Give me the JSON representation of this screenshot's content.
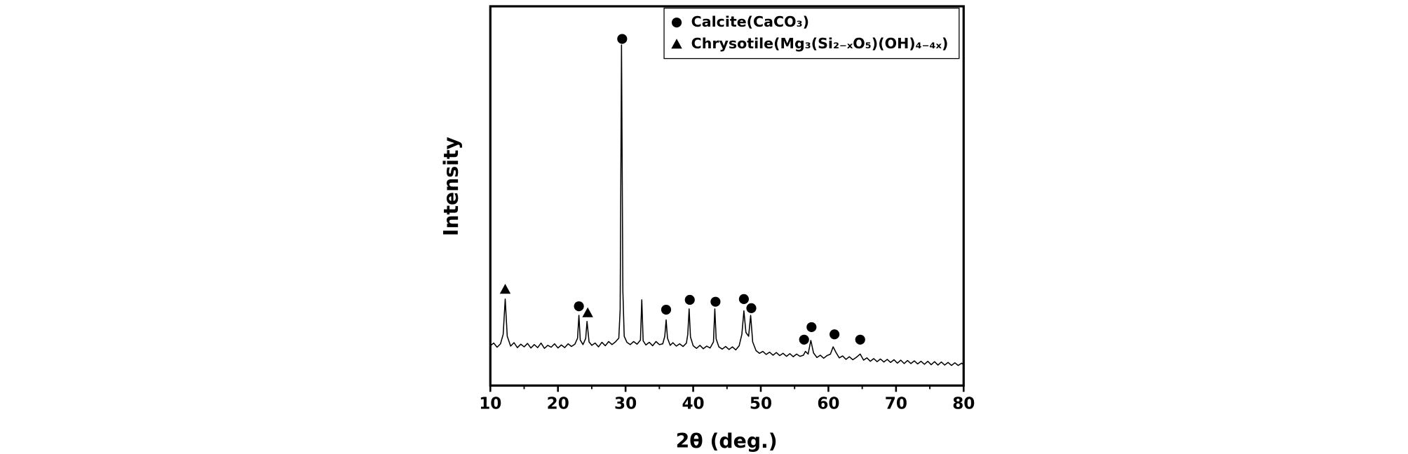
{
  "chart_data": {
    "type": "line",
    "xlabel": "2θ (deg.)",
    "ylabel": "Intensity",
    "xlim": [
      10,
      80
    ],
    "xticks": [
      10,
      20,
      30,
      40,
      50,
      60,
      70,
      80
    ],
    "ylim": [
      0,
      100
    ],
    "color": "#000000",
    "x": [
      10,
      10.5,
      11,
      11.5,
      11.9,
      12.2,
      12.5,
      13,
      13.5,
      14,
      14.5,
      15,
      15.5,
      16,
      16.5,
      17,
      17.5,
      18,
      18.5,
      19,
      19.5,
      20,
      20.5,
      21,
      21.5,
      22,
      22.5,
      22.9,
      23.1,
      23.3,
      23.7,
      24.1,
      24.3,
      24.6,
      25,
      25.5,
      26,
      26.5,
      27,
      27.5,
      28,
      28.5,
      29,
      29.2,
      29.4,
      29.6,
      29.8,
      30.2,
      30.7,
      31.2,
      31.7,
      32.2,
      32.4,
      32.6,
      33,
      33.5,
      34,
      34.5,
      35,
      35.5,
      35.8,
      36,
      36.2,
      36.6,
      37,
      37.5,
      38,
      38.5,
      39,
      39.2,
      39.4,
      39.6,
      40,
      40.5,
      41,
      41.5,
      42,
      42.5,
      43,
      43.2,
      43.4,
      43.8,
      44.3,
      44.8,
      45.3,
      45.8,
      46.3,
      46.8,
      47.2,
      47.5,
      47.8,
      48.2,
      48.5,
      48.8,
      49.3,
      49.8,
      50.3,
      50.8,
      51.3,
      51.8,
      52.3,
      52.8,
      53.3,
      53.8,
      54.3,
      54.8,
      55.3,
      55.8,
      56.3,
      56.6,
      57,
      57.4,
      57.8,
      58.3,
      58.8,
      59.3,
      59.8,
      60.3,
      60.7,
      61.1,
      61.6,
      62.1,
      62.6,
      63.1,
      63.6,
      64.1,
      64.7,
      65.2,
      65.7,
      66.2,
      66.7,
      67.2,
      67.7,
      68.2,
      68.7,
      69.2,
      69.7,
      70.2,
      70.7,
      71.2,
      71.7,
      72.2,
      72.7,
      73.2,
      73.7,
      74.2,
      74.7,
      75.2,
      75.7,
      76.2,
      76.7,
      77.2,
      77.7,
      78.2,
      78.7,
      79.2,
      79.7,
      80
    ],
    "values": [
      10.5,
      11.2,
      10.1,
      11.0,
      13.5,
      22.8,
      13.0,
      10.4,
      11.3,
      10.0,
      10.9,
      10.2,
      11.1,
      9.9,
      10.8,
      10.0,
      11.2,
      9.8,
      10.6,
      10.1,
      11.0,
      9.9,
      10.7,
      10.0,
      11.0,
      10.3,
      10.9,
      12.5,
      18.5,
      12.0,
      10.8,
      12.4,
      16.9,
      11.5,
      10.6,
      11.2,
      10.2,
      11.4,
      10.5,
      11.6,
      10.8,
      11.5,
      12.5,
      20,
      89.8,
      25,
      13,
      11.4,
      10.8,
      11.6,
      10.9,
      12.0,
      22.6,
      11.8,
      10.7,
      11.4,
      10.5,
      11.6,
      10.8,
      11.0,
      13.0,
      17.3,
      12.5,
      10.6,
      11.3,
      10.4,
      11.0,
      10.3,
      11.2,
      13.5,
      20.2,
      12.8,
      10.5,
      9.8,
      10.6,
      9.7,
      10.4,
      9.9,
      11.5,
      20.2,
      12.3,
      10.2,
      9.6,
      10.3,
      9.5,
      10.2,
      9.4,
      10.5,
      13.5,
      19.7,
      14.0,
      13.0,
      18.5,
      11.5,
      9.2,
      8.5,
      9.0,
      8.2,
      8.8,
      8.0,
      8.7,
      7.9,
      8.5,
      7.7,
      8.4,
      7.6,
      8.3,
      7.7,
      8.0,
      9.0,
      8.3,
      11.9,
      8.6,
      7.4,
      8.0,
      7.2,
      7.9,
      8.3,
      10.2,
      8.8,
      7.3,
      7.8,
      6.9,
      7.6,
      6.8,
      7.4,
      8.3,
      6.7,
      7.3,
      6.4,
      7.1,
      6.3,
      7.0,
      6.2,
      6.9,
      6.1,
      6.8,
      5.9,
      6.7,
      5.8,
      6.6,
      5.8,
      6.5,
      5.7,
      6.4,
      5.6,
      6.4,
      5.5,
      6.3,
      5.4,
      6.2,
      5.4,
      6.1,
      5.3,
      6.0,
      5.3,
      5.9,
      5.5
    ],
    "series": [
      {
        "name": "Calcite(CaCO₃)",
        "marker": "circle",
        "color": "#000000",
        "x": [
          23.1,
          29.5,
          36.0,
          39.5,
          43.3,
          47.5,
          48.6,
          56.4,
          57.5,
          60.9,
          64.7
        ],
        "values": [
          20.9,
          91.4,
          20.0,
          22.6,
          22.1,
          22.8,
          20.4,
          12.1,
          15.4,
          13.5,
          12.1
        ]
      },
      {
        "name": "Chrysotile(Mg₃(Si₂₋ₓO₅)(OH)₄₋₄ₓ)",
        "marker": "triangle",
        "color": "#000000",
        "x": [
          12.2,
          24.4
        ],
        "values": [
          25.4,
          19.2
        ]
      }
    ],
    "legend": "upper right"
  }
}
